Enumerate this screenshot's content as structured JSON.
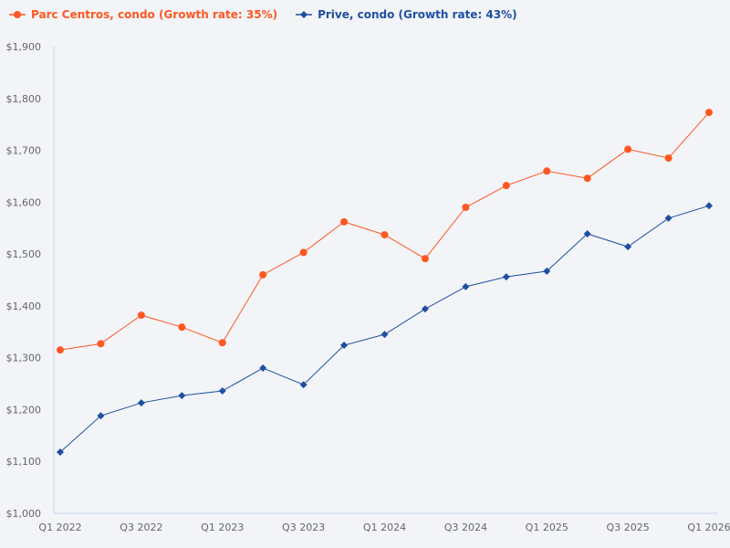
{
  "chart_data": {
    "type": "line",
    "categories": [
      "Q1 2022",
      "Q2 2022",
      "Q3 2022",
      "Q4 2022",
      "Q1 2023",
      "Q2 2023",
      "Q3 2023",
      "Q4 2023",
      "Q1 2024",
      "Q2 2024",
      "Q3 2024",
      "Q4 2024",
      "Q1 2025",
      "Q2 2025",
      "Q3 2025",
      "Q4 2025",
      "Q1 2026"
    ],
    "x_tick_labels": [
      "Q1 2022",
      "Q3 2022",
      "Q1 2023",
      "Q3 2023",
      "Q1 2024",
      "Q3 2024",
      "Q1 2025",
      "Q3 2025",
      "Q1 2026"
    ],
    "y_tick_labels": [
      "$1,000",
      "$1,100",
      "$1,200",
      "$1,300",
      "$1,400",
      "$1,500",
      "$1,600",
      "$1,700",
      "$1,800",
      "$1,900"
    ],
    "ylim": [
      1000,
      1900
    ],
    "legend_position": "top-left",
    "grid": false,
    "series": [
      {
        "name": "Parc Centros, condo (Growth rate: 35%)",
        "color": "#ff5722",
        "marker": "circle",
        "values": [
          1315,
          1327,
          1382,
          1359,
          1329,
          1460,
          1503,
          1562,
          1537,
          1491,
          1590,
          1632,
          1660,
          1646,
          1702,
          1685,
          1773
        ]
      },
      {
        "name": "Prive, condo (Growth rate: 43%)",
        "color": "#1f4fa3",
        "marker": "diamond",
        "values": [
          1118,
          1188,
          1213,
          1227,
          1236,
          1280,
          1248,
          1324,
          1345,
          1394,
          1437,
          1456,
          1467,
          1539,
          1514,
          1569,
          1593
        ]
      }
    ]
  }
}
